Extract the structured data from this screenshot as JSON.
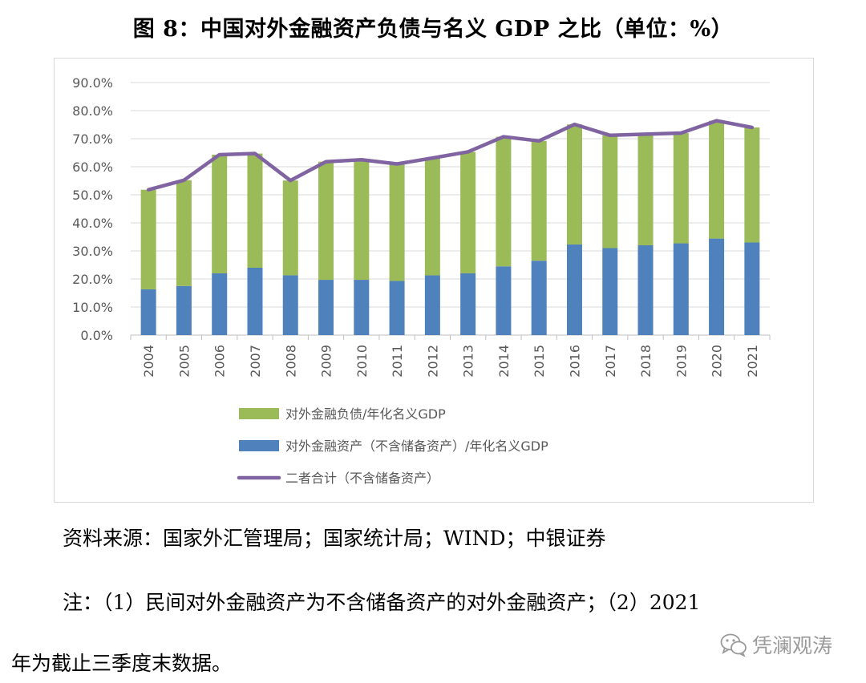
{
  "title": "图 8：中国对外金融资产负债与名义 GDP 之比（单位：%）",
  "chart_data": {
    "type": "bar",
    "stacked": true,
    "categories": [
      "2004",
      "2005",
      "2006",
      "2007",
      "2008",
      "2009",
      "2010",
      "2011",
      "2012",
      "2013",
      "2014",
      "2015",
      "2016",
      "2017",
      "2018",
      "2019",
      "2020",
      "2021"
    ],
    "ylim": [
      0,
      90
    ],
    "yticks": [
      0,
      10,
      20,
      30,
      40,
      50,
      60,
      70,
      80,
      90
    ],
    "ytick_labels": [
      "0.0%",
      "10.0%",
      "20.0%",
      "30.0%",
      "40.0%",
      "50.0%",
      "60.0%",
      "70.0%",
      "80.0%",
      "90.0%"
    ],
    "grid": true,
    "legend_position": "bottom",
    "series": [
      {
        "name": "对外金融资产（不含储备资产）/年化名义GDP",
        "kind": "bar",
        "color": "#4f81bd",
        "values": [
          16.3,
          17.5,
          22.0,
          24.0,
          21.3,
          19.7,
          19.7,
          19.3,
          21.3,
          22.0,
          24.5,
          26.5,
          32.3,
          31.0,
          32.0,
          32.7,
          34.4,
          33.0
        ]
      },
      {
        "name": "对外金融负债/年化名义GDP",
        "kind": "bar",
        "color": "#9bbb59",
        "values": [
          35.5,
          37.7,
          42.3,
          40.7,
          33.8,
          42.1,
          42.8,
          41.7,
          41.8,
          43.3,
          46.2,
          42.7,
          42.8,
          40.2,
          39.6,
          39.3,
          42.0,
          41.0
        ]
      },
      {
        "name": "二者合计（不含储备资产）",
        "kind": "line",
        "color": "#8064a2",
        "values": [
          51.8,
          55.2,
          64.3,
          64.7,
          55.1,
          61.8,
          62.5,
          61.0,
          63.1,
          65.3,
          70.7,
          69.2,
          75.1,
          71.2,
          71.6,
          72.0,
          76.4,
          74.0
        ]
      }
    ],
    "legend_order": [
      1,
      0,
      2
    ]
  },
  "source": "资料来源：国家外汇管理局；国家统计局；WIND；中银证券",
  "note_line1": "注：（1）民间对外金融资产为不含储备资产的对外金融资产；（2）2021",
  "note_line2": "年为截止三季度末数据。",
  "watermark": {
    "icon": "wechat-icon",
    "text": "凭澜观涛"
  }
}
